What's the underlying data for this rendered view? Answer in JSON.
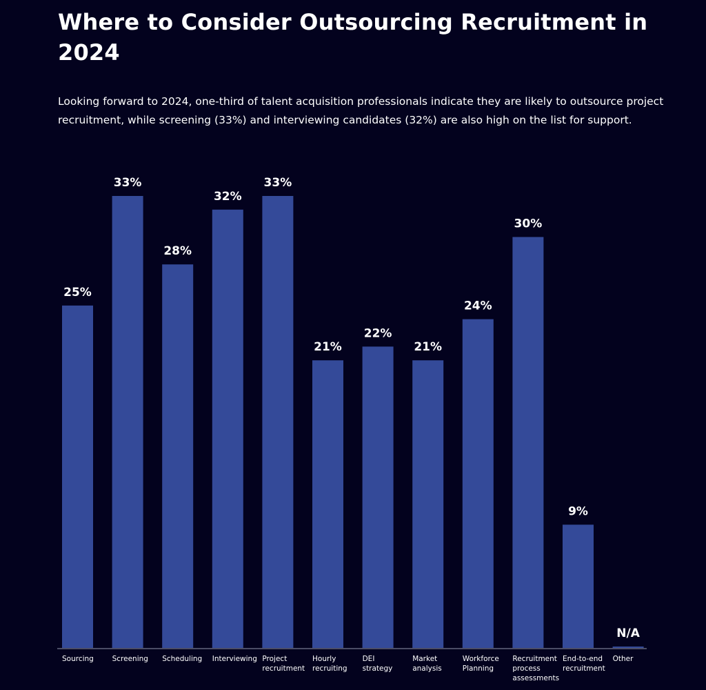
{
  "page": {
    "title": "Where to Consider Outsourcing Recruitment in 2024",
    "subtitle": "Looking forward to 2024, one-third of talent acquisition professionals indicate they are likely to outsource project recruitment, while screening (33%) and interviewing candidates (32%) are also high on the list for support."
  },
  "colors": {
    "background": "#03021e",
    "bar": "#344a99",
    "text": "#ffffff",
    "axis": "#4b4d66"
  },
  "chart_data": {
    "type": "bar",
    "title": "Where to Consider Outsourcing Recruitment in 2024",
    "xlabel": "",
    "ylabel": "",
    "ylim": [
      0,
      33
    ],
    "grid": false,
    "legend": "none",
    "categories": [
      "Sourcing",
      "Screening",
      "Scheduling",
      "Interviewing",
      "Project\nrecruitment",
      "Hourly\nrecruiting",
      "DEI\nstrategy",
      "Market\nanalysis",
      "Workforce\nPlanning",
      "Recruitment\nprocess\nassessments",
      "End-to-end\nrecruitment",
      "Other"
    ],
    "values": [
      25,
      33,
      28,
      32,
      33,
      21,
      22,
      21,
      24,
      30,
      9,
      0.1
    ],
    "data_labels": [
      "25%",
      "33%",
      "28%",
      "32%",
      "33%",
      "21%",
      "22%",
      "21%",
      "24%",
      "30%",
      "9%",
      "N/A"
    ],
    "units": "%"
  }
}
